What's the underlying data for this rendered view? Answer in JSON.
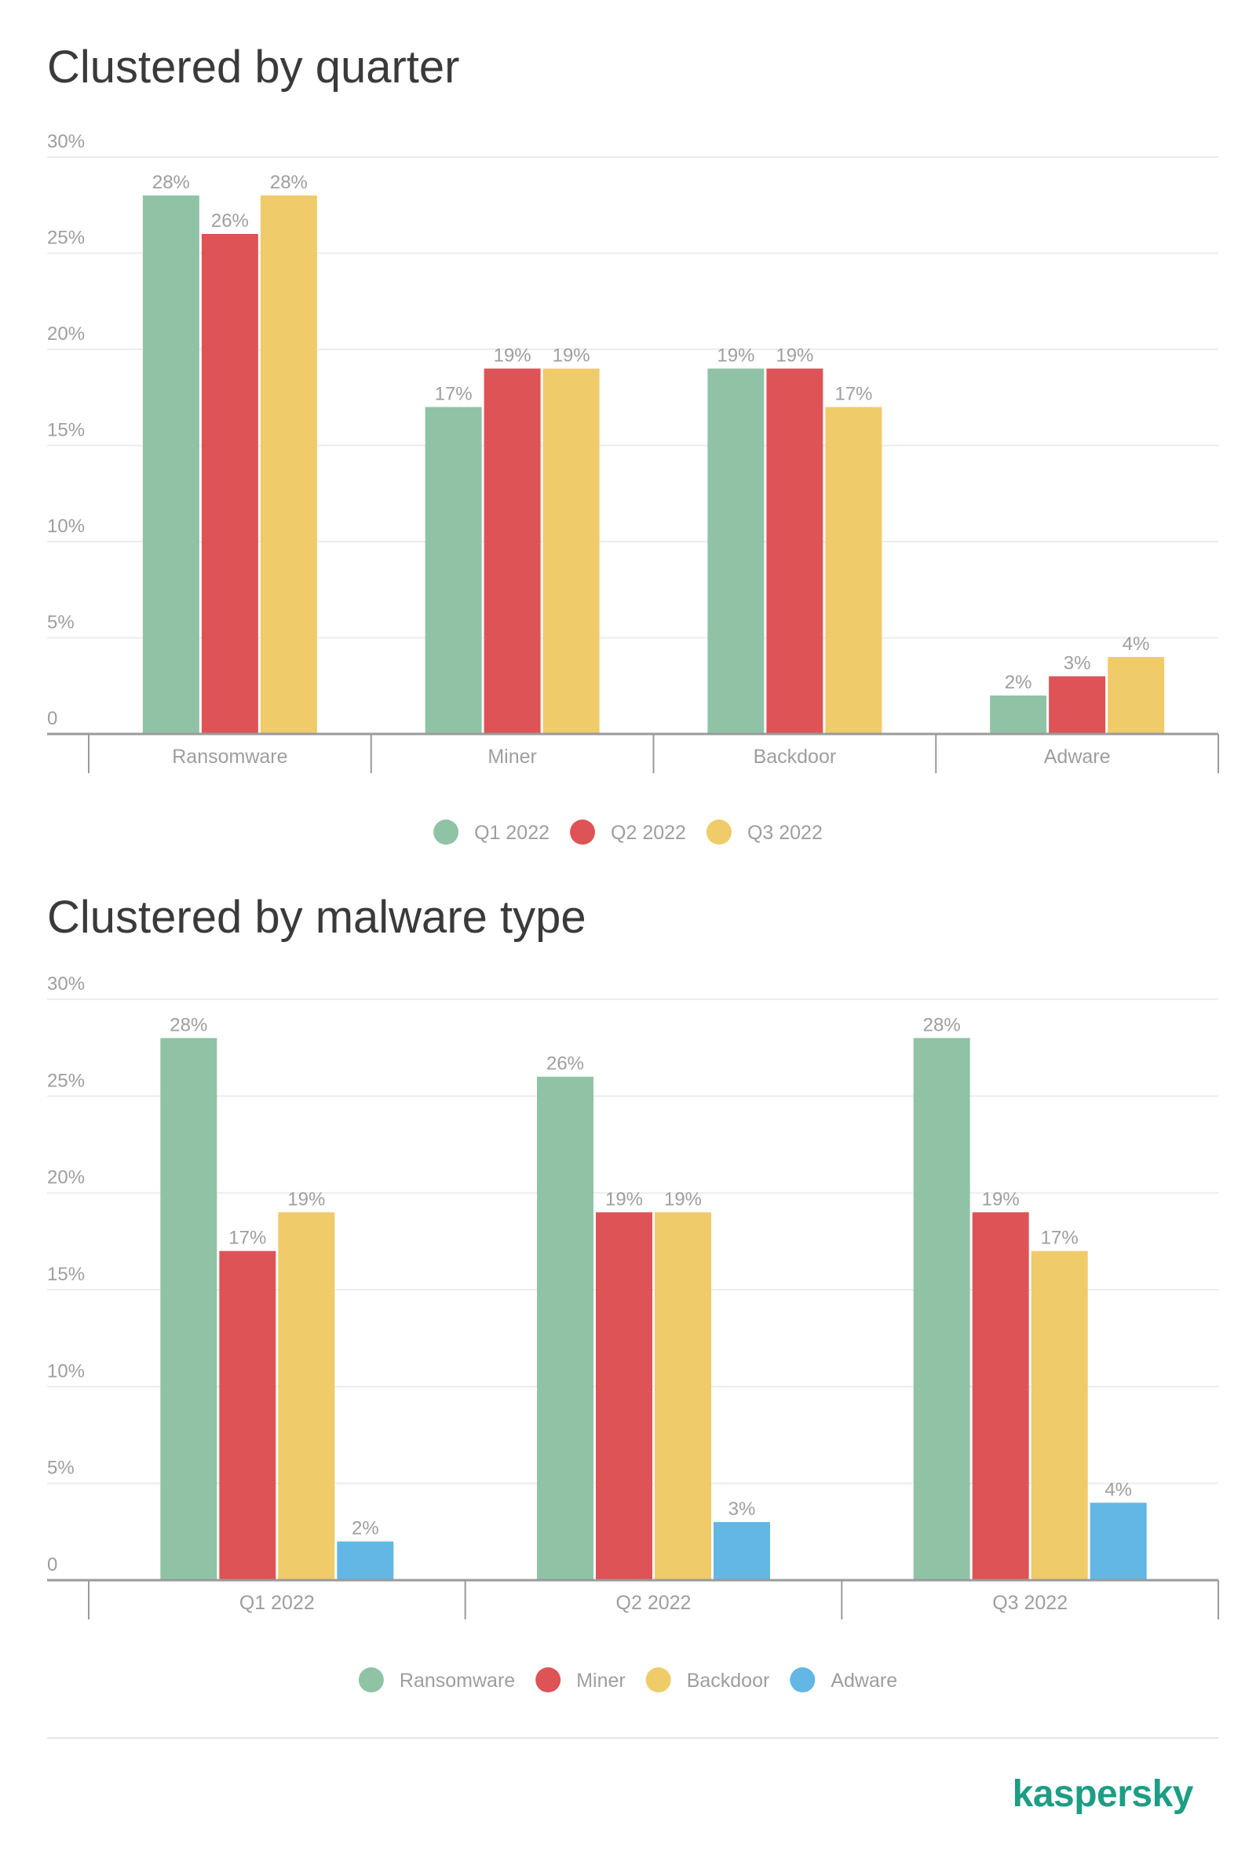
{
  "chart_data": [
    {
      "type": "bar",
      "title": "Clustered by quarter",
      "categories": [
        "Ransomware",
        "Miner",
        "Backdoor",
        "Adware"
      ],
      "series": [
        {
          "name": "Q1 2022",
          "color": "#90c3a6",
          "values": [
            28,
            17,
            19,
            2
          ],
          "labels": [
            "28%",
            "17%",
            "19%",
            "2%"
          ]
        },
        {
          "name": "Q2 2022",
          "color": "#de5356",
          "values": [
            26,
            19,
            19,
            3
          ],
          "labels": [
            "26%",
            "19%",
            "19%",
            "3%"
          ]
        },
        {
          "name": "Q3 2022",
          "color": "#efcb69",
          "values": [
            28,
            19,
            17,
            4
          ],
          "labels": [
            "28%",
            "19%",
            "17%",
            "4%"
          ]
        }
      ],
      "ylim": [
        0,
        30
      ],
      "yticks": [
        0,
        5,
        10,
        15,
        20,
        25,
        30
      ],
      "ytick_labels": [
        "0",
        "5%",
        "10%",
        "15%",
        "20%",
        "25%",
        "30%"
      ],
      "grid": true,
      "legend_position": "bottom-center"
    },
    {
      "type": "bar",
      "title": "Clustered by malware type",
      "categories": [
        "Q1 2022",
        "Q2 2022",
        "Q3 2022"
      ],
      "series": [
        {
          "name": "Ransomware",
          "color": "#90c3a6",
          "values": [
            28,
            26,
            28
          ],
          "labels": [
            "28%",
            "26%",
            "28%"
          ]
        },
        {
          "name": "Miner",
          "color": "#de5356",
          "values": [
            17,
            19,
            19
          ],
          "labels": [
            "17%",
            "19%",
            "19%"
          ]
        },
        {
          "name": "Backdoor",
          "color": "#efcb69",
          "values": [
            19,
            19,
            17
          ],
          "labels": [
            "19%",
            "19%",
            "17%"
          ]
        },
        {
          "name": "Adware",
          "color": "#62b7e4",
          "values": [
            2,
            3,
            4
          ],
          "labels": [
            "2%",
            "3%",
            "4%"
          ]
        }
      ],
      "ylim": [
        0,
        30
      ],
      "yticks": [
        0,
        5,
        10,
        15,
        20,
        25,
        30
      ],
      "ytick_labels": [
        "0",
        "5%",
        "10%",
        "15%",
        "20%",
        "25%",
        "30%"
      ],
      "grid": true,
      "legend_position": "bottom-center"
    }
  ],
  "colors": {
    "grid": "#ececec",
    "axis": "#9a9a9a",
    "label": "#9e9e9e",
    "brand": "#1d9d84"
  },
  "brand": {
    "logo_text": "kaspersky"
  }
}
